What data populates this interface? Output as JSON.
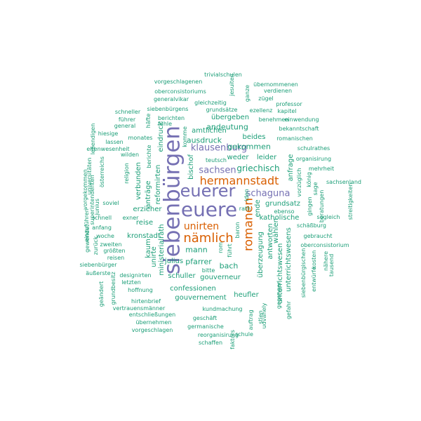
{
  "colors": {
    "teal": "#1b9e77",
    "orange": "#d95f02",
    "purple": "#7570b3"
  },
  "words": [
    {
      "text": "siebenbürgen",
      "c": "purple",
      "v": true
    },
    {
      "text": "euere",
      "c": "purple",
      "v": false
    },
    {
      "text": "euerer",
      "c": "purple",
      "v": false
    },
    {
      "text": "romanen",
      "c": "orange",
      "v": true
    },
    {
      "text": "hermannstadt",
      "c": "orange",
      "v": false
    },
    {
      "text": "nämlich",
      "c": "orange",
      "v": false
    },
    {
      "text": "unirten",
      "c": "orange",
      "v": false
    },
    {
      "text": "schaguna",
      "c": "purple",
      "v": false
    },
    {
      "text": "sachsen",
      "c": "purple",
      "v": false
    },
    {
      "text": "klausenburg",
      "c": "purple",
      "v": false
    },
    {
      "text": "griechisch",
      "c": "teal",
      "v": false
    },
    {
      "text": "ausdruck",
      "c": "teal",
      "v": false
    },
    {
      "text": "gekommen",
      "c": "teal",
      "v": false
    },
    {
      "text": "andeutung",
      "c": "teal",
      "v": false
    },
    {
      "text": "beides",
      "c": "teal",
      "v": false
    },
    {
      "text": "amtlichen",
      "c": "teal",
      "v": false
    },
    {
      "text": "übergeben",
      "c": "teal",
      "v": false
    },
    {
      "text": "weder",
      "c": "teal",
      "v": false
    },
    {
      "text": "leider",
      "c": "teal",
      "v": false
    },
    {
      "text": "bischof",
      "c": "teal",
      "v": true
    },
    {
      "text": "mann",
      "c": "teal",
      "v": false
    },
    {
      "text": "pfarrer",
      "c": "teal",
      "v": false
    },
    {
      "text": "bach",
      "c": "teal",
      "v": false
    },
    {
      "text": "reise",
      "c": "teal",
      "v": false
    },
    {
      "text": "kronstadt",
      "c": "teal",
      "v": false
    },
    {
      "text": "schuller",
      "c": "teal",
      "v": false
    },
    {
      "text": "julius",
      "c": "teal",
      "v": false
    },
    {
      "text": "gouverneur",
      "c": "teal",
      "v": false
    },
    {
      "text": "confessionen",
      "c": "teal",
      "v": false
    },
    {
      "text": "gouvernement",
      "c": "teal",
      "v": false
    },
    {
      "text": "heufler",
      "c": "teal",
      "v": false
    },
    {
      "text": "überzeugung",
      "c": "teal",
      "v": true
    },
    {
      "text": "antworten",
      "c": "teal",
      "v": true
    },
    {
      "text": "wählen",
      "c": "teal",
      "v": true
    },
    {
      "text": "katholische",
      "c": "teal",
      "v": false
    },
    {
      "text": "grundsatz",
      "c": "teal",
      "v": false
    },
    {
      "text": "ende",
      "c": "teal",
      "v": true
    },
    {
      "text": "anfrage",
      "c": "teal",
      "v": true
    },
    {
      "text": "ministerialrath",
      "c": "teal",
      "v": true
    },
    {
      "text": "reformirten",
      "c": "teal",
      "v": true
    },
    {
      "text": "eindruck",
      "c": "teal",
      "v": true
    },
    {
      "text": "verbunden",
      "c": "teal",
      "v": true
    },
    {
      "text": "anträge",
      "c": "teal",
      "v": true
    },
    {
      "text": "erzieher",
      "c": "teal",
      "v": false
    },
    {
      "text": "kaum",
      "c": "teal",
      "v": true
    },
    {
      "text": "unirte",
      "c": "teal",
      "v": true
    },
    {
      "text": "unterrichtswesens",
      "c": "teal",
      "v": true
    },
    {
      "text": "unterrichtswesen",
      "c": "teal",
      "v": true
    },
    {
      "text": "vorgeschlagenen",
      "c": "teal",
      "v": false
    },
    {
      "text": "trivialschulen",
      "c": "teal",
      "v": false
    },
    {
      "text": "oberconsistoriums",
      "c": "teal",
      "v": false
    },
    {
      "text": "generalvikar",
      "c": "teal",
      "v": false
    },
    {
      "text": "gleichzeitig",
      "c": "teal",
      "v": false
    },
    {
      "text": "übernommenen",
      "c": "teal",
      "v": false
    },
    {
      "text": "verdienen",
      "c": "teal",
      "v": false
    },
    {
      "text": "zügel",
      "c": "teal",
      "v": false
    },
    {
      "text": "professor",
      "c": "teal",
      "v": false
    },
    {
      "text": "jesuiten",
      "c": "teal",
      "v": true
    },
    {
      "text": "ganze",
      "c": "teal",
      "v": true
    },
    {
      "text": "schneller",
      "c": "teal",
      "v": false
    },
    {
      "text": "siebenbürgens",
      "c": "teal",
      "v": false
    },
    {
      "text": "grundsätze",
      "c": "teal",
      "v": false
    },
    {
      "text": "ezellenz",
      "c": "teal",
      "v": false
    },
    {
      "text": "kapitel",
      "c": "teal",
      "v": false
    },
    {
      "text": "führer",
      "c": "teal",
      "v": false
    },
    {
      "text": "berichten",
      "c": "teal",
      "v": false
    },
    {
      "text": "benehmen",
      "c": "teal",
      "v": false
    },
    {
      "text": "einwendung",
      "c": "teal",
      "v": false
    },
    {
      "text": "general",
      "c": "teal",
      "v": false
    },
    {
      "text": "fühle",
      "c": "teal",
      "v": false
    },
    {
      "text": "bekanntschaft",
      "c": "teal",
      "v": false
    },
    {
      "text": "hiesige",
      "c": "teal",
      "v": false
    },
    {
      "text": "monates",
      "c": "teal",
      "v": false
    },
    {
      "text": "romanischen",
      "c": "teal",
      "v": false
    },
    {
      "text": "lassen",
      "c": "teal",
      "v": false
    },
    {
      "text": "schulrathes",
      "c": "teal",
      "v": false
    },
    {
      "text": "lebendigen",
      "c": "teal",
      "v": true
    },
    {
      "text": "häfte",
      "c": "teal",
      "v": true
    },
    {
      "text": "komme",
      "c": "teal",
      "v": true
    },
    {
      "text": "teutsch",
      "c": "teal",
      "v": false
    },
    {
      "text": "organisirung",
      "c": "teal",
      "v": false
    },
    {
      "text": "eltenwesenheit",
      "c": "teal",
      "v": false
    },
    {
      "text": "wilden",
      "c": "teal",
      "v": false
    },
    {
      "text": "berichte",
      "c": "teal",
      "v": true
    },
    {
      "text": "mehrheit",
      "c": "teal",
      "v": false
    },
    {
      "text": "österreichs",
      "c": "teal",
      "v": true
    },
    {
      "text": "universitäten",
      "c": "teal",
      "v": true
    },
    {
      "text": "religion",
      "c": "teal",
      "v": true
    },
    {
      "text": "könig",
      "c": "teal",
      "v": true
    },
    {
      "text": "sachsenland",
      "c": "teal",
      "v": false
    },
    {
      "text": "vorzüglich",
      "c": "teal",
      "v": true
    },
    {
      "text": "sage",
      "c": "teal",
      "v": true
    },
    {
      "text": "streitigkeiten",
      "c": "teal",
      "v": true
    },
    {
      "text": "vorgekommen",
      "c": "teal",
      "v": true
    },
    {
      "text": "superintendenten",
      "c": "teal",
      "v": true
    },
    {
      "text": "junius",
      "c": "teal",
      "v": true
    },
    {
      "text": "soviel",
      "c": "teal",
      "v": false
    },
    {
      "text": "gingen",
      "c": "teal",
      "v": true
    },
    {
      "text": "beratungen",
      "c": "teal",
      "v": true
    },
    {
      "text": "ebenso",
      "c": "teal",
      "v": false
    },
    {
      "text": "rath",
      "c": "teal",
      "v": false
    },
    {
      "text": "iden",
      "c": "teal",
      "v": true
    },
    {
      "text": "sogleich",
      "c": "teal",
      "v": false
    },
    {
      "text": "schnell",
      "c": "teal",
      "v": false
    },
    {
      "text": "exner",
      "c": "teal",
      "v": false
    },
    {
      "text": "schäßburg",
      "c": "teal",
      "v": false
    },
    {
      "text": "einzuführen",
      "c": "teal",
      "v": true
    },
    {
      "text": "anfang",
      "c": "teal",
      "v": false
    },
    {
      "text": "baron",
      "c": "teal",
      "v": true
    },
    {
      "text": "gebraucht",
      "c": "teal",
      "v": false
    },
    {
      "text": "woche",
      "c": "teal",
      "v": false
    },
    {
      "text": "gewendet",
      "c": "teal",
      "v": true
    },
    {
      "text": "oberconsistorium",
      "c": "teal",
      "v": false
    },
    {
      "text": "zweiten",
      "c": "teal",
      "v": false
    },
    {
      "text": "zurück",
      "c": "teal",
      "v": true
    },
    {
      "text": "größten",
      "c": "teal",
      "v": false
    },
    {
      "text": "rom",
      "c": "teal",
      "v": true
    },
    {
      "text": "reisen",
      "c": "teal",
      "v": false
    },
    {
      "text": "führt",
      "c": "teal",
      "v": true
    },
    {
      "text": "kosten",
      "c": "teal",
      "v": true
    },
    {
      "text": "siebenbürger",
      "c": "teal",
      "v": false
    },
    {
      "text": "nähere",
      "c": "teal",
      "v": true
    },
    {
      "text": "tausend",
      "c": "teal",
      "v": true
    },
    {
      "text": "äußerste",
      "c": "teal",
      "v": false
    },
    {
      "text": "designirten",
      "c": "teal",
      "v": false
    },
    {
      "text": "bitte",
      "c": "teal",
      "v": false
    },
    {
      "text": "letzten",
      "c": "teal",
      "v": false
    },
    {
      "text": "siebenbürgischen",
      "c": "teal",
      "v": true
    },
    {
      "text": "hoffnung",
      "c": "teal",
      "v": false
    },
    {
      "text": "grundbesitz",
      "c": "teal",
      "v": true
    },
    {
      "text": "entwürfe",
      "c": "teal",
      "v": true
    },
    {
      "text": "geändert",
      "c": "teal",
      "v": true
    },
    {
      "text": "hirtenbrief",
      "c": "teal",
      "v": false
    },
    {
      "text": "gegangen",
      "c": "teal",
      "v": true
    },
    {
      "text": "vertrauensmänner",
      "c": "teal",
      "v": false
    },
    {
      "text": "kundmachung",
      "c": "teal",
      "v": false
    },
    {
      "text": "gefahr",
      "c": "teal",
      "v": true
    },
    {
      "text": "stien",
      "c": "teal",
      "v": true
    },
    {
      "text": "entschließungen",
      "c": "teal",
      "v": false
    },
    {
      "text": "auftrag",
      "c": "teal",
      "v": true
    },
    {
      "text": "geschäft",
      "c": "teal",
      "v": false
    },
    {
      "text": "übernehmen",
      "c": "teal",
      "v": false
    },
    {
      "text": "udvahely",
      "c": "teal",
      "v": true
    },
    {
      "text": "germanische",
      "c": "teal",
      "v": false
    },
    {
      "text": "vorgeschlagen",
      "c": "teal",
      "v": false
    },
    {
      "text": "schule",
      "c": "teal",
      "v": false
    },
    {
      "text": "reorganisirung",
      "c": "teal",
      "v": false
    },
    {
      "text": "faktors",
      "c": "teal",
      "v": true
    },
    {
      "text": "schaffen",
      "c": "teal",
      "v": false
    }
  ]
}
